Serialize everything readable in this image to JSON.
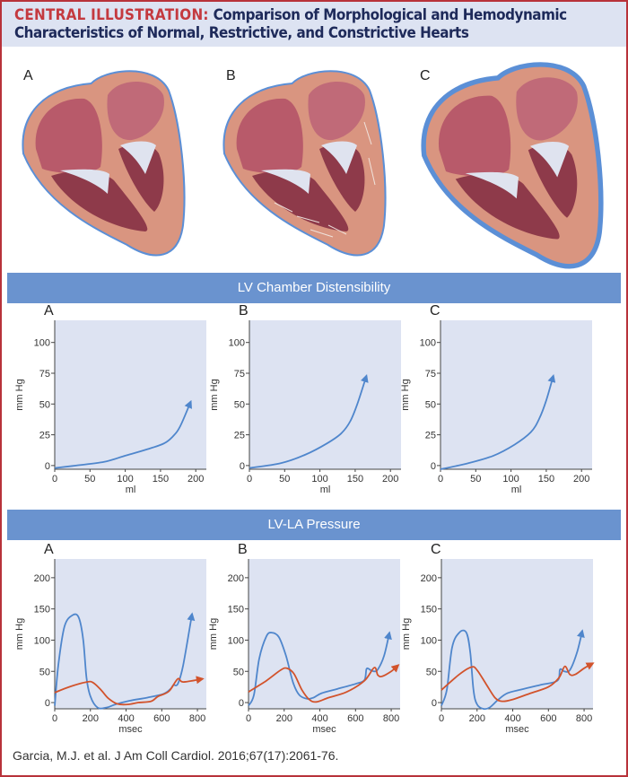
{
  "header": {
    "kicker": "CENTRAL ILLUSTRATION:",
    "title_line1": "Comparison of Morphological and Hemodynamic",
    "title_line2": "Characteristics of Normal, Restrictive, and Constrictive Hearts"
  },
  "hearts": {
    "labels": [
      "A",
      "B",
      "C"
    ]
  },
  "sections": {
    "distensibility": "LV Chamber Distensibility",
    "pressure": "LV-LA Pressure"
  },
  "footer": {
    "citation": "Garcia, M.J. et al. J Am Coll Cardiol. 2016;67(17):2061-76."
  },
  "colors": {
    "accent_red": "#c4393f",
    "section_bar": "#6a93cf",
    "plot_bg": "#dde3f2",
    "lv_curve": "#4f86cc",
    "la_curve": "#d2532c",
    "title_navy": "#1e2a5a"
  },
  "chart_data": [
    {
      "type": "line",
      "panel": "A",
      "xlabel": "ml",
      "ylabel": "mm Hg",
      "xlim": [
        0,
        215
      ],
      "ylim": [
        -3,
        118
      ],
      "xticks": [
        0,
        50,
        100,
        150,
        200
      ],
      "yticks": [
        0,
        25,
        50,
        75,
        100
      ],
      "grid": false,
      "series": [
        {
          "color": "#4f86cc",
          "arrow": true,
          "points": [
            [
              0,
              -2
            ],
            [
              30,
              0
            ],
            [
              70,
              3
            ],
            [
              100,
              8
            ],
            [
              130,
              13
            ],
            [
              155,
              18
            ],
            [
              168,
              24
            ],
            [
              178,
              32
            ],
            [
              193,
              52
            ]
          ]
        }
      ]
    },
    {
      "type": "line",
      "panel": "B",
      "xlabel": "ml",
      "ylabel": "mm Hg",
      "xlim": [
        0,
        215
      ],
      "ylim": [
        -3,
        118
      ],
      "xticks": [
        0,
        50,
        100,
        150,
        200
      ],
      "yticks": [
        0,
        25,
        50,
        75,
        100
      ],
      "grid": false,
      "series": [
        {
          "color": "#4f86cc",
          "arrow": true,
          "points": [
            [
              0,
              -2
            ],
            [
              45,
              2
            ],
            [
              80,
              9
            ],
            [
              110,
              18
            ],
            [
              130,
              26
            ],
            [
              143,
              36
            ],
            [
              153,
              50
            ],
            [
              166,
              73
            ]
          ]
        }
      ]
    },
    {
      "type": "line",
      "panel": "C",
      "xlabel": "ml",
      "ylabel": "mm Hg",
      "xlim": [
        0,
        215
      ],
      "ylim": [
        -3,
        118
      ],
      "xticks": [
        0,
        50,
        100,
        150,
        200
      ],
      "yticks": [
        0,
        25,
        50,
        75,
        100
      ],
      "grid": false,
      "series": [
        {
          "color": "#4f86cc",
          "arrow": true,
          "points": [
            [
              0,
              -3
            ],
            [
              40,
              2
            ],
            [
              75,
              8
            ],
            [
              105,
              17
            ],
            [
              128,
              27
            ],
            [
              140,
              38
            ],
            [
              150,
              53
            ],
            [
              160,
              73
            ]
          ]
        }
      ]
    },
    {
      "type": "line",
      "panel": "A",
      "xlabel": "msec",
      "ylabel": "mm Hg",
      "xlim": [
        0,
        850
      ],
      "ylim": [
        -10,
        230
      ],
      "xticks": [
        0,
        200,
        400,
        600,
        800
      ],
      "yticks": [
        0,
        50,
        100,
        150,
        200
      ],
      "grid": false,
      "series": [
        {
          "color": "#4f86cc",
          "arrow": true,
          "points": [
            [
              0,
              -5
            ],
            [
              20,
              60
            ],
            [
              55,
              122
            ],
            [
              100,
              140
            ],
            [
              135,
              136
            ],
            [
              160,
              100
            ],
            [
              178,
              40
            ],
            [
              200,
              10
            ],
            [
              240,
              -8
            ],
            [
              290,
              -8
            ],
            [
              340,
              -3
            ],
            [
              420,
              3
            ],
            [
              520,
              8
            ],
            [
              610,
              14
            ],
            [
              650,
              22
            ],
            [
              665,
              28
            ],
            [
              690,
              30
            ],
            [
              720,
              60
            ],
            [
              770,
              142
            ]
          ]
        },
        {
          "color": "#d2532c",
          "arrow": true,
          "points": [
            [
              0,
              16
            ],
            [
              90,
              26
            ],
            [
              180,
              33
            ],
            [
              215,
              32
            ],
            [
              260,
              20
            ],
            [
              300,
              7
            ],
            [
              350,
              -2
            ],
            [
              410,
              -3
            ],
            [
              470,
              0
            ],
            [
              540,
              2
            ],
            [
              580,
              10
            ],
            [
              640,
              18
            ],
            [
              690,
              38
            ],
            [
              720,
              33
            ],
            [
              830,
              38
            ]
          ]
        }
      ]
    },
    {
      "type": "line",
      "panel": "B",
      "xlabel": "msec",
      "ylabel": "mm Hg",
      "xlim": [
        0,
        850
      ],
      "ylim": [
        -10,
        230
      ],
      "xticks": [
        0,
        200,
        400,
        600,
        800
      ],
      "yticks": [
        0,
        50,
        100,
        150,
        200
      ],
      "grid": false,
      "series": [
        {
          "color": "#4f86cc",
          "arrow": true,
          "points": [
            [
              0,
              -5
            ],
            [
              30,
              12
            ],
            [
              60,
              70
            ],
            [
              100,
              106
            ],
            [
              130,
              112
            ],
            [
              170,
              105
            ],
            [
              210,
              75
            ],
            [
              250,
              32
            ],
            [
              285,
              12
            ],
            [
              330,
              6
            ],
            [
              365,
              8
            ],
            [
              410,
              15
            ],
            [
              500,
              22
            ],
            [
              600,
              30
            ],
            [
              650,
              36
            ],
            [
              662,
              54
            ],
            [
              685,
              52
            ],
            [
              705,
              50
            ],
            [
              725,
              53
            ],
            [
              760,
              75
            ],
            [
              790,
              112
            ]
          ]
        },
        {
          "color": "#d2532c",
          "arrow": true,
          "points": [
            [
              0,
              17
            ],
            [
              100,
              35
            ],
            [
              180,
              52
            ],
            [
              215,
              55
            ],
            [
              255,
              46
            ],
            [
              300,
              20
            ],
            [
              340,
              5
            ],
            [
              380,
              1
            ],
            [
              450,
              8
            ],
            [
              550,
              17
            ],
            [
              650,
              35
            ],
            [
              705,
              56
            ],
            [
              725,
              44
            ],
            [
              750,
              42
            ],
            [
              800,
              50
            ],
            [
              840,
              60
            ]
          ]
        }
      ]
    },
    {
      "type": "line",
      "panel": "C",
      "xlabel": "msec",
      "ylabel": "mm Hg",
      "xlim": [
        0,
        850
      ],
      "ylim": [
        -10,
        230
      ],
      "xticks": [
        0,
        200,
        400,
        600,
        800
      ],
      "yticks": [
        0,
        50,
        100,
        150,
        200
      ],
      "grid": false,
      "series": [
        {
          "color": "#4f86cc",
          "arrow": true,
          "points": [
            [
              0,
              -5
            ],
            [
              30,
              20
            ],
            [
              60,
              88
            ],
            [
              100,
              112
            ],
            [
              140,
              112
            ],
            [
              162,
              80
            ],
            [
              180,
              20
            ],
            [
              200,
              -3
            ],
            [
              235,
              -10
            ],
            [
              270,
              -8
            ],
            [
              320,
              5
            ],
            [
              370,
              15
            ],
            [
              450,
              21
            ],
            [
              550,
              28
            ],
            [
              650,
              35
            ],
            [
              665,
              53
            ],
            [
              690,
              50
            ],
            [
              720,
              52
            ],
            [
              760,
              80
            ],
            [
              790,
              115
            ]
          ]
        },
        {
          "color": "#d2532c",
          "arrow": true,
          "points": [
            [
              0,
              20
            ],
            [
              100,
              45
            ],
            [
              170,
              57
            ],
            [
              200,
              52
            ],
            [
              250,
              30
            ],
            [
              300,
              8
            ],
            [
              340,
              2
            ],
            [
              400,
              5
            ],
            [
              500,
              15
            ],
            [
              600,
              25
            ],
            [
              660,
              40
            ],
            [
              692,
              58
            ],
            [
              720,
              45
            ],
            [
              750,
              45
            ],
            [
              800,
              55
            ],
            [
              850,
              63
            ]
          ]
        }
      ]
    }
  ]
}
